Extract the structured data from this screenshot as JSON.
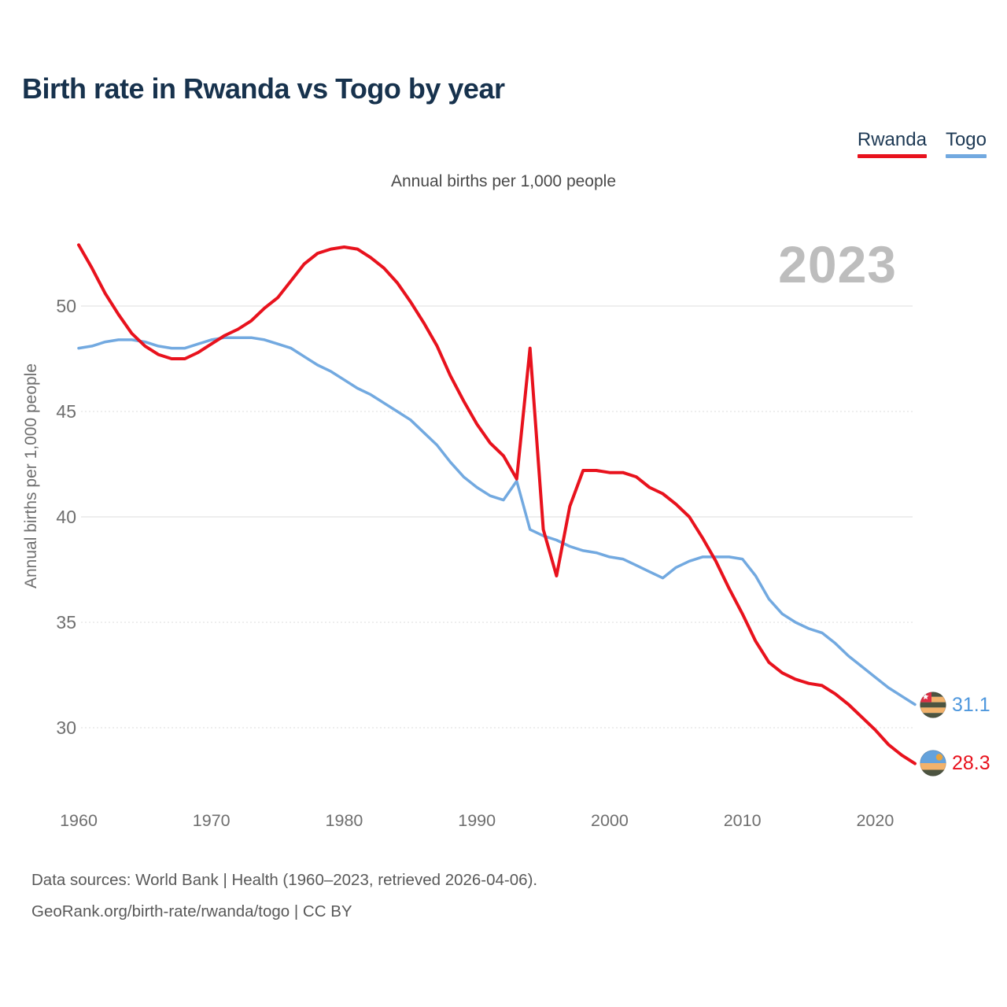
{
  "title": "Birth rate in Rwanda vs Togo by year",
  "subtitle": "Annual births per 1,000 people",
  "watermark_year": "2023",
  "legend": {
    "items": [
      {
        "label": "Rwanda",
        "color": "#e8121d"
      },
      {
        "label": "Togo",
        "color": "#72a9e0"
      }
    ]
  },
  "end_labels": [
    {
      "series": "Togo",
      "flag_icon": "togo-flag-icon",
      "value": "31.1",
      "color": "#4e97dd"
    },
    {
      "series": "Rwanda",
      "flag_icon": "rwanda-flag-icon",
      "value": "28.3",
      "color": "#e8121d"
    }
  ],
  "footer": {
    "line1": "Data sources: World Bank | Health (1960–2023, retrieved 2026-04-06).",
    "line2": "GeoRank.org/birth-rate/rwanda/togo | CC BY"
  },
  "chart_data": {
    "type": "line",
    "title": "Birth rate in Rwanda vs Togo by year",
    "subtitle": "Annual births per 1,000 people",
    "ylabel": "Annual births per 1,000 people",
    "xlabel": "",
    "grid": true,
    "legend_position": "top-right",
    "xlim": [
      1960,
      2023
    ],
    "ylim": [
      27,
      54
    ],
    "y_ticks": [
      50,
      45,
      40,
      35,
      30
    ],
    "x_ticks": [
      1960,
      1970,
      1980,
      1990,
      2000,
      2010,
      2020
    ],
    "x": [
      1960,
      1961,
      1962,
      1963,
      1964,
      1965,
      1966,
      1967,
      1968,
      1969,
      1970,
      1971,
      1972,
      1973,
      1974,
      1975,
      1976,
      1977,
      1978,
      1979,
      1980,
      1981,
      1982,
      1983,
      1984,
      1985,
      1986,
      1987,
      1988,
      1989,
      1990,
      1991,
      1992,
      1993,
      1994,
      1995,
      1996,
      1997,
      1998,
      1999,
      2000,
      2001,
      2002,
      2003,
      2004,
      2005,
      2006,
      2007,
      2008,
      2009,
      2010,
      2011,
      2012,
      2013,
      2014,
      2015,
      2016,
      2017,
      2018,
      2019,
      2020,
      2021,
      2022,
      2023
    ],
    "series": [
      {
        "name": "Rwanda",
        "color": "#e8121d",
        "last_value": 28.3,
        "values": [
          52.9,
          51.8,
          50.6,
          49.6,
          48.7,
          48.1,
          47.7,
          47.5,
          47.5,
          47.8,
          48.2,
          48.6,
          48.9,
          49.3,
          49.9,
          50.4,
          51.2,
          52.0,
          52.5,
          52.7,
          52.8,
          52.7,
          52.3,
          51.8,
          51.1,
          50.2,
          49.2,
          48.1,
          46.7,
          45.5,
          44.4,
          43.5,
          42.9,
          41.8,
          48.0,
          39.4,
          37.2,
          40.5,
          42.2,
          42.2,
          42.1,
          42.1,
          41.9,
          41.4,
          41.1,
          40.6,
          40.0,
          39.0,
          37.9,
          36.6,
          35.4,
          34.1,
          33.1,
          32.6,
          32.3,
          32.1,
          32.0,
          31.6,
          31.1,
          30.5,
          29.9,
          29.2,
          28.7,
          28.3
        ]
      },
      {
        "name": "Togo",
        "color": "#72a9e0",
        "last_value": 31.1,
        "values": [
          48.0,
          48.1,
          48.3,
          48.4,
          48.4,
          48.3,
          48.1,
          48.0,
          48.0,
          48.2,
          48.4,
          48.5,
          48.5,
          48.5,
          48.4,
          48.2,
          48.0,
          47.6,
          47.2,
          46.9,
          46.5,
          46.1,
          45.8,
          45.4,
          45.0,
          44.6,
          44.0,
          43.4,
          42.6,
          41.9,
          41.4,
          41.0,
          40.8,
          41.7,
          39.4,
          39.1,
          38.9,
          38.6,
          38.4,
          38.3,
          38.1,
          38.0,
          37.7,
          37.4,
          37.1,
          37.6,
          37.9,
          38.1,
          38.1,
          38.1,
          38.0,
          37.2,
          36.1,
          35.4,
          35.0,
          34.7,
          34.5,
          34.0,
          33.4,
          32.9,
          32.4,
          31.9,
          31.5,
          31.1
        ]
      }
    ]
  }
}
